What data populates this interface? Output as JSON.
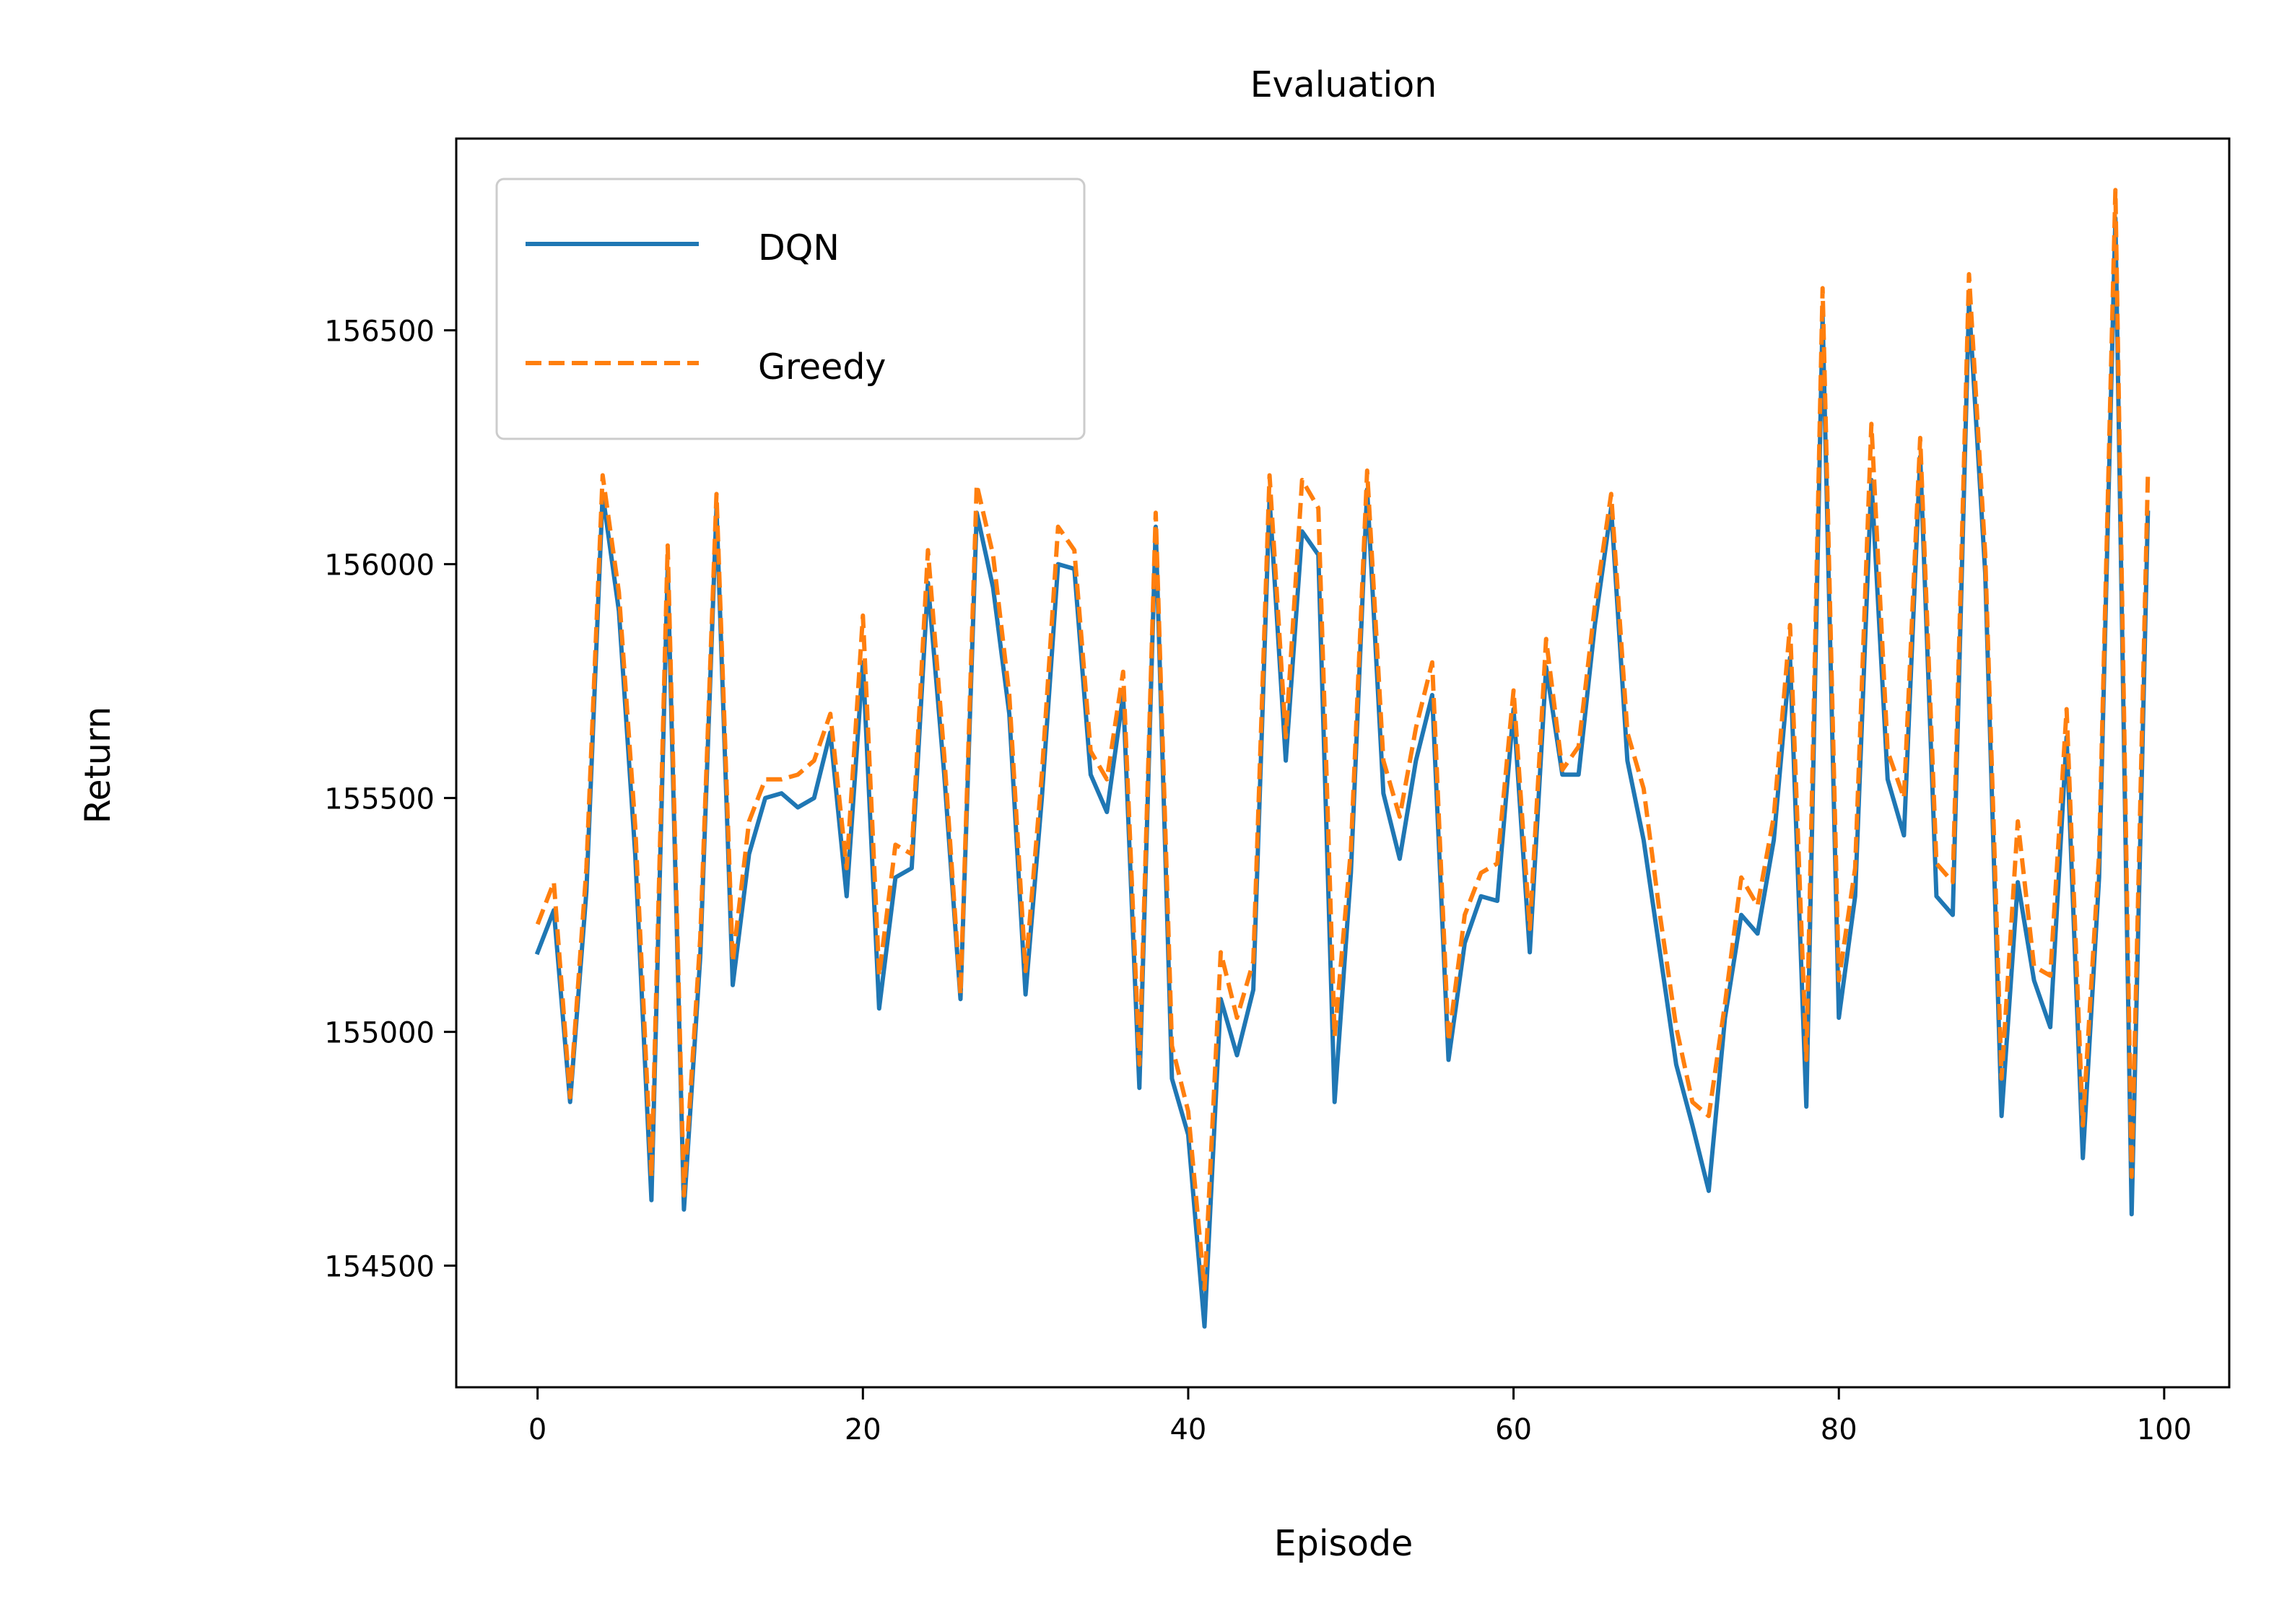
{
  "chart_data": {
    "type": "line",
    "title": "Evaluation",
    "xlabel": "Episode",
    "ylabel": "Return",
    "xlim": [
      -5,
      104
    ],
    "ylim": [
      154240,
      156910
    ],
    "xticks": [
      0,
      20,
      40,
      60,
      80,
      100
    ],
    "yticks": [
      154500,
      155000,
      155500,
      156000,
      156500
    ],
    "grid": false,
    "legend_position": "top-left",
    "series": [
      {
        "name": "DQN",
        "color": "#1f77b4",
        "style": "solid",
        "values": [
          155170,
          155260,
          154850,
          155300,
          156150,
          155900,
          155380,
          154640,
          155990,
          154620,
          155160,
          156120,
          155100,
          155380,
          155500,
          155510,
          155480,
          155500,
          155640,
          155290,
          155790,
          155050,
          155330,
          155350,
          155960,
          155550,
          155070,
          156110,
          155950,
          155680,
          155080,
          155500,
          156000,
          155990,
          155550,
          155470,
          155720,
          154880,
          156080,
          154900,
          154780,
          154370,
          155070,
          154950,
          155090,
          156140,
          155580,
          156070,
          156020,
          154850,
          155340,
          156160,
          155510,
          155370,
          155580,
          155720,
          154940,
          155190,
          155290,
          155280,
          155690,
          155170,
          155780,
          155550,
          155550,
          155870,
          156120,
          155580,
          155410,
          155170,
          154930,
          154800,
          154660,
          155030,
          155250,
          155210,
          155410,
          155800,
          154840,
          156530,
          155030,
          155290,
          156180,
          155540,
          155420,
          156230,
          155290,
          155250,
          156560,
          155980,
          154820,
          155320,
          155110,
          155010,
          155630,
          154730,
          155330,
          156740,
          154610,
          156110
        ]
      },
      {
        "name": "Greedy",
        "color": "#ff7f0e",
        "style": "dashed",
        "values": [
          155230,
          155320,
          154860,
          155350,
          156190,
          155940,
          155440,
          154690,
          156040,
          154650,
          155200,
          156150,
          155150,
          155450,
          155540,
          155540,
          155550,
          155580,
          155680,
          155350,
          155890,
          155120,
          155400,
          155380,
          156030,
          155590,
          155080,
          156170,
          156020,
          155720,
          155130,
          155550,
          156080,
          156030,
          155600,
          155540,
          155770,
          154930,
          156110,
          154970,
          154830,
          154450,
          155170,
          155030,
          155150,
          156190,
          155630,
          156180,
          156120,
          154990,
          155390,
          156200,
          155580,
          155460,
          155650,
          155790,
          154980,
          155250,
          155340,
          155360,
          155730,
          155220,
          155840,
          155560,
          155610,
          155910,
          156150,
          155640,
          155520,
          155250,
          155010,
          154850,
          154820,
          155060,
          155330,
          155270,
          155460,
          155870,
          154940,
          156590,
          155110,
          155350,
          156300,
          155600,
          155500,
          156270,
          155360,
          155320,
          156620,
          156020,
          154900,
          155450,
          155140,
          155120,
          155690,
          154800,
          155380,
          156800,
          154690,
          156190
        ]
      }
    ]
  }
}
